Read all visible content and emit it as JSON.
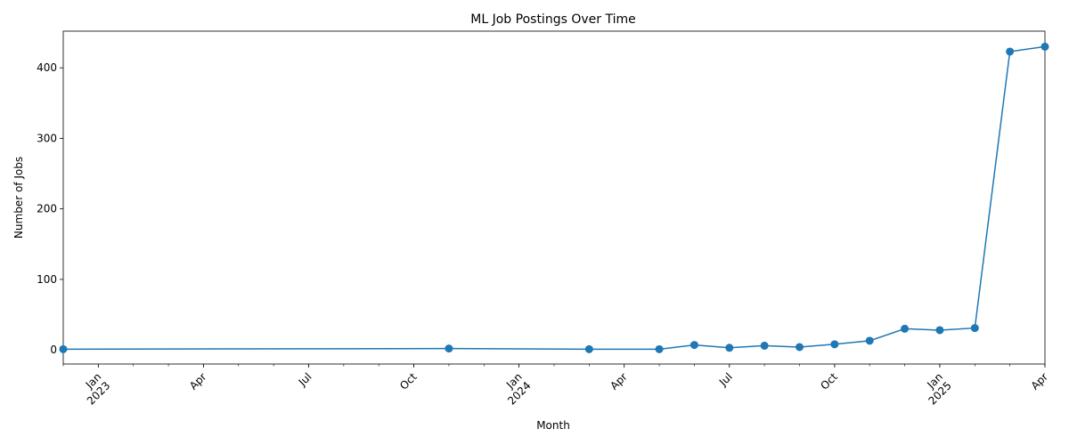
{
  "chart_data": {
    "type": "line",
    "title": "ML Job Postings Over Time",
    "xlabel": "Month",
    "ylabel": "Number of Jobs",
    "x_range": [
      "2022-12",
      "2025-04"
    ],
    "ylim": [
      -20,
      452
    ],
    "grid": false,
    "legend": "none",
    "y_ticks": [
      0,
      100,
      200,
      300,
      400
    ],
    "x_ticks": [
      {
        "date": "2023-01",
        "label": "Jan",
        "year": "2023",
        "major": true
      },
      {
        "date": "2023-04",
        "label": "Apr",
        "year": "",
        "major": true
      },
      {
        "date": "2023-07",
        "label": "Jul",
        "year": "",
        "major": true
      },
      {
        "date": "2023-10",
        "label": "Oct",
        "year": "",
        "major": true
      },
      {
        "date": "2024-01",
        "label": "Jan",
        "year": "2024",
        "major": true
      },
      {
        "date": "2024-04",
        "label": "Apr",
        "year": "",
        "major": true
      },
      {
        "date": "2024-07",
        "label": "Jul",
        "year": "",
        "major": true
      },
      {
        "date": "2024-10",
        "label": "Oct",
        "year": "",
        "major": true
      },
      {
        "date": "2025-01",
        "label": "Jan",
        "year": "2025",
        "major": true
      },
      {
        "date": "2025-04",
        "label": "Apr",
        "year": "",
        "major": true
      }
    ],
    "series": [
      {
        "color": "#1f77b4",
        "points": [
          {
            "x": "2022-12",
            "y": 1
          },
          {
            "x": "2023-11",
            "y": 2
          },
          {
            "x": "2024-03",
            "y": 1
          },
          {
            "x": "2024-05",
            "y": 1
          },
          {
            "x": "2024-06",
            "y": 7
          },
          {
            "x": "2024-07",
            "y": 3
          },
          {
            "x": "2024-08",
            "y": 6
          },
          {
            "x": "2024-09",
            "y": 4
          },
          {
            "x": "2024-10",
            "y": 8
          },
          {
            "x": "2024-11",
            "y": 13
          },
          {
            "x": "2024-12",
            "y": 30
          },
          {
            "x": "2025-01",
            "y": 28
          },
          {
            "x": "2025-02",
            "y": 31
          },
          {
            "x": "2025-03",
            "y": 423
          },
          {
            "x": "2025-04",
            "y": 430
          }
        ]
      }
    ]
  }
}
